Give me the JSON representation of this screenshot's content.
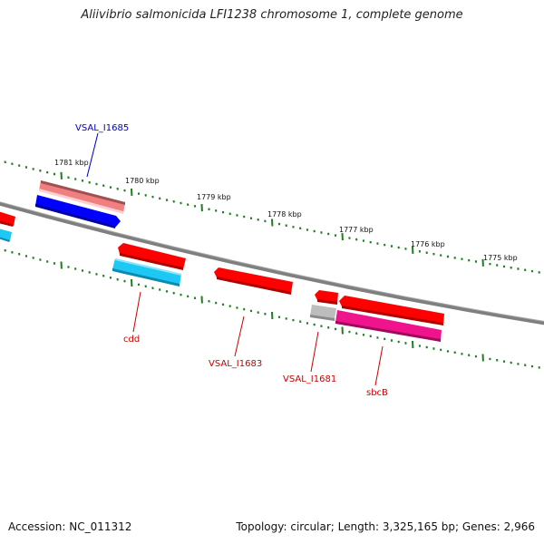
{
  "title": "Aliivibrio salmonicida LFI1238 chromosome 1, complete genome",
  "accession_label": "Accession: NC_011312",
  "summary_label": "Topology: circular; Length: 3,325,165 bp; Genes: 2,966",
  "kbp_labels": [
    "1781 kbp",
    "1780 kbp",
    "1779 kbp",
    "1778 kbp",
    "1777 kbp",
    "1776 kbp",
    "1775 kbp"
  ],
  "colors": {
    "backbone": "#7f7f7f",
    "tick": "#1e7d1e",
    "forward_label": "#0000cc",
    "reverse_label": "#cc0000",
    "gene_red": "#ff0000",
    "gene_blue": "#0000ff",
    "gene_cyan": "#1ec8f5",
    "gene_pink": "#f08080",
    "gene_magenta": "#f0148c",
    "gene_gray": "#bdbdbd"
  },
  "genes": [
    {
      "name": "VSAL_I1685",
      "color": "blue",
      "strand": "forward"
    },
    {
      "name": "cdd",
      "color": "red",
      "strand": "reverse"
    },
    {
      "name": "VSAL_I1683",
      "color": "red",
      "strand": "reverse"
    },
    {
      "name": "VSAL_I1681",
      "color": "red",
      "strand": "reverse"
    },
    {
      "name": "sbcB",
      "color": "red",
      "strand": "reverse"
    }
  ]
}
